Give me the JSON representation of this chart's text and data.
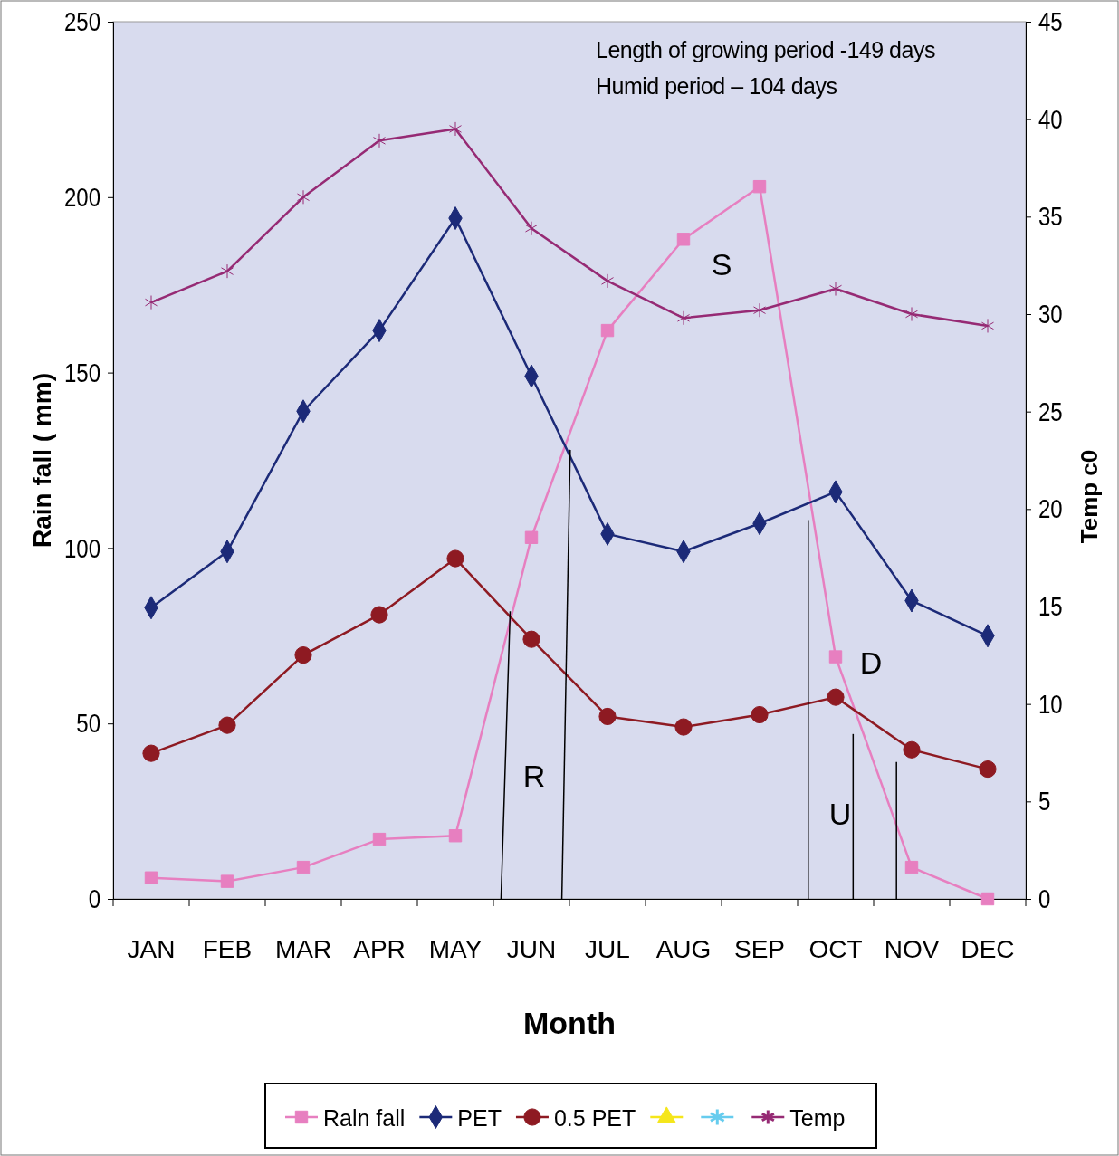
{
  "chart_data": {
    "type": "line",
    "xlabel": "Month",
    "ylabel": "Rain fall ( mm)",
    "y2label": "Temp c0",
    "categories": [
      "JAN",
      "FEB",
      "MAR",
      "APR",
      "MAY",
      "JUN",
      "JUL",
      "AUG",
      "SEP",
      "OCT",
      "NOV",
      "DEC"
    ],
    "series": [
      {
        "name": "Raln fall",
        "color": "#e77fc0",
        "marker": "square",
        "values": [
          6,
          5,
          9,
          17,
          18,
          103,
          162,
          188,
          203,
          69,
          9,
          0
        ]
      },
      {
        "name": "PET",
        "color": "#1c2a78",
        "marker": "diamond",
        "values": [
          83,
          99,
          139,
          162,
          194,
          149,
          104,
          99,
          107,
          116,
          85,
          75
        ]
      },
      {
        "name": "0.5 PET",
        "color": "#8e1a22",
        "marker": "circle",
        "values": [
          41.5,
          49.5,
          69.5,
          81,
          97,
          74,
          52,
          49,
          52.5,
          57.5,
          42.5,
          37
        ]
      },
      {
        "name": "Temp",
        "color": "#962a74",
        "marker": "cross",
        "axis": "y2",
        "values": [
          30.6,
          32.2,
          36.0,
          38.9,
          39.5,
          34.4,
          31.7,
          29.8,
          30.2,
          31.3,
          30.0,
          29.4
        ]
      }
    ],
    "ylim": [
      0,
      250
    ],
    "yticks": [
      0,
      50,
      100,
      150,
      200,
      250
    ],
    "y2lim": [
      0,
      45
    ],
    "y2ticks": [
      0,
      5,
      10,
      15,
      20,
      25,
      30,
      35,
      40,
      45
    ],
    "legend": "bottom",
    "annotations": [
      "Length of growing period -149 days",
      "Humid period – 104 days",
      "R",
      "S",
      "D",
      "U"
    ]
  }
}
